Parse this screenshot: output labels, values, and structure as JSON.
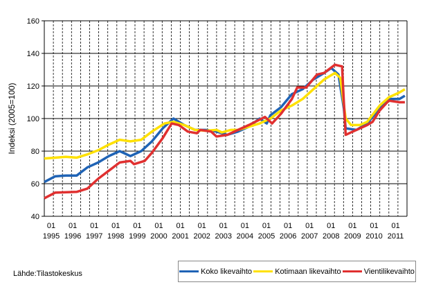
{
  "chart_data": {
    "type": "line",
    "title": "",
    "xlabel": "",
    "ylabel": "Indeksi (2005=100)",
    "ylim": [
      40,
      160
    ],
    "yticks": [
      40,
      60,
      80,
      100,
      120,
      140,
      160
    ],
    "xtick_month_label": "01",
    "xticks": [
      "1995",
      "1996",
      "1997",
      "1998",
      "1999",
      "2000",
      "2001",
      "2002",
      "2003",
      "2004",
      "2005",
      "2006",
      "2007",
      "2008",
      "2009",
      "2010",
      "2011"
    ],
    "grid": "horizontal solid, vertical dashed",
    "legend_position": "bottom-right",
    "series": [
      {
        "name": "Koko likevaihto",
        "color": "#1f63b5",
        "points": [
          [
            "1995-01",
            61
          ],
          [
            "1995-07",
            64.5
          ],
          [
            "1996-01",
            65
          ],
          [
            "1996-07",
            65
          ],
          [
            "1997-01",
            70
          ],
          [
            "1997-07",
            73
          ],
          [
            "1998-01",
            77
          ],
          [
            "1998-07",
            80
          ],
          [
            "1999-01",
            77
          ],
          [
            "1999-07",
            80
          ],
          [
            "2000-01",
            86
          ],
          [
            "2000-07",
            94
          ],
          [
            "2001-01",
            100
          ],
          [
            "2001-07",
            96
          ],
          [
            "2002-01",
            93
          ],
          [
            "2002-07",
            93
          ],
          [
            "2003-01",
            92
          ],
          [
            "2003-07",
            90
          ],
          [
            "2004-01",
            92
          ],
          [
            "2004-07",
            95
          ],
          [
            "2005-01",
            100
          ],
          [
            "2005-05",
            97
          ],
          [
            "2005-07",
            102
          ],
          [
            "2006-01",
            107
          ],
          [
            "2006-07",
            115
          ],
          [
            "2007-01",
            118
          ],
          [
            "2007-07",
            124
          ],
          [
            "2008-01",
            128
          ],
          [
            "2008-05",
            131
          ],
          [
            "2008-09",
            127
          ],
          [
            "2008-12",
            106
          ],
          [
            "2009-01",
            94
          ],
          [
            "2009-07",
            93
          ],
          [
            "2010-01",
            97
          ],
          [
            "2010-07",
            105
          ],
          [
            "2011-01",
            112
          ],
          [
            "2011-07",
            112
          ],
          [
            "2011-10",
            114
          ]
        ]
      },
      {
        "name": "Kotimaan likevaihto",
        "color": "#ffe100",
        "points": [
          [
            "1995-01",
            75.5
          ],
          [
            "1996-01",
            76.5
          ],
          [
            "1996-07",
            76
          ],
          [
            "1997-01",
            78
          ],
          [
            "1997-07",
            80.5
          ],
          [
            "1998-01",
            84
          ],
          [
            "1998-07",
            87
          ],
          [
            "1999-01",
            86
          ],
          [
            "1999-07",
            87
          ],
          [
            "2000-01",
            92
          ],
          [
            "2000-08",
            97
          ],
          [
            "2001-01",
            98
          ],
          [
            "2001-07",
            96
          ],
          [
            "2002-01",
            93
          ],
          [
            "2002-07",
            92.5
          ],
          [
            "2003-01",
            93
          ],
          [
            "2003-04",
            91.5
          ],
          [
            "2003-09",
            93
          ],
          [
            "2004-01",
            93
          ],
          [
            "2004-07",
            95
          ],
          [
            "2005-01",
            97
          ],
          [
            "2005-07",
            100
          ],
          [
            "2006-01",
            105
          ],
          [
            "2006-07",
            108
          ],
          [
            "2007-01",
            112
          ],
          [
            "2007-07",
            118
          ],
          [
            "2008-01",
            124
          ],
          [
            "2008-07",
            128
          ],
          [
            "2008-10",
            125
          ],
          [
            "2009-01",
            100
          ],
          [
            "2009-04",
            96
          ],
          [
            "2009-09",
            96
          ],
          [
            "2010-01",
            98
          ],
          [
            "2010-08",
            108
          ],
          [
            "2011-01",
            113
          ],
          [
            "2011-07",
            116
          ],
          [
            "2011-10",
            118
          ]
        ]
      },
      {
        "name": "Vientilikevaihto",
        "color": "#e03030",
        "points": [
          [
            "1995-01",
            51
          ],
          [
            "1995-07",
            54.5
          ],
          [
            "1996-07",
            55
          ],
          [
            "1997-01",
            57
          ],
          [
            "1997-07",
            63
          ],
          [
            "1998-01",
            68
          ],
          [
            "1998-07",
            73
          ],
          [
            "1999-01",
            74
          ],
          [
            "1999-03",
            72
          ],
          [
            "1999-09",
            74
          ],
          [
            "2000-01",
            79
          ],
          [
            "2000-07",
            88
          ],
          [
            "2000-12",
            97
          ],
          [
            "2001-04",
            96
          ],
          [
            "2001-09",
            92
          ],
          [
            "2002-02",
            91
          ],
          [
            "2002-04",
            93
          ],
          [
            "2002-10",
            92
          ],
          [
            "2003-01",
            89
          ],
          [
            "2003-07",
            90
          ],
          [
            "2004-01",
            93
          ],
          [
            "2004-07",
            96
          ],
          [
            "2005-04",
            101
          ],
          [
            "2005-08",
            97
          ],
          [
            "2006-01",
            103
          ],
          [
            "2006-07",
            112
          ],
          [
            "2006-10",
            119
          ],
          [
            "2007-03",
            119
          ],
          [
            "2007-09",
            127
          ],
          [
            "2008-01",
            128
          ],
          [
            "2008-07",
            133
          ],
          [
            "2008-11",
            132
          ],
          [
            "2008-12",
            110
          ],
          [
            "2009-01",
            90
          ],
          [
            "2009-07",
            93
          ],
          [
            "2010-01",
            96
          ],
          [
            "2010-04",
            98
          ],
          [
            "2010-08",
            105
          ],
          [
            "2011-01",
            111
          ],
          [
            "2011-07",
            110
          ],
          [
            "2011-10",
            110
          ]
        ]
      }
    ]
  },
  "source": "Lähde:Tilastokeskus"
}
